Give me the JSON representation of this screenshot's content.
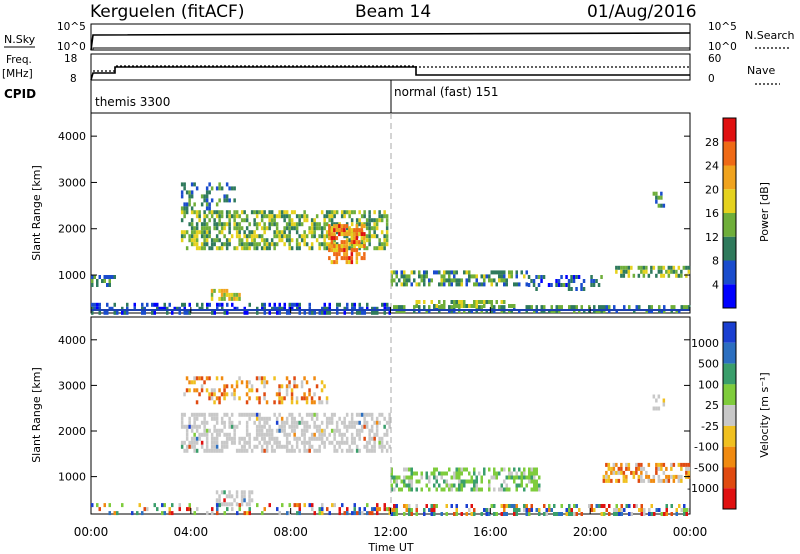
{
  "header": {
    "station": "Kerguelen (fitACF)",
    "beam": "Beam 14",
    "date": "01/Aug/2016"
  },
  "strip": {
    "nsky_label": "N.Sky",
    "nsearch_label": "N.Search",
    "nsky_ticks": [
      "10^5",
      "10^0"
    ],
    "nsearch_ticks": [
      "10^5",
      "10^0"
    ],
    "freq_label": "Freq.",
    "freq_unit": "[MHz]",
    "freq_ticks": [
      "18",
      "8"
    ],
    "nave_label": "Nave",
    "nave_ticks": [
      "60",
      "0"
    ],
    "cpid_label": "CPID",
    "cpid_segments": [
      {
        "label": "themis 3300",
        "start_hr": 0
      },
      {
        "label": "normal (fast) 151",
        "start_hr": 12
      }
    ]
  },
  "x_axis": {
    "title": "Time UT",
    "ticks": [
      "00:00",
      "04:00",
      "08:00",
      "12:00",
      "16:00",
      "20:00",
      "00:00"
    ],
    "range_hr": [
      0,
      24
    ]
  },
  "chart_data": [
    {
      "type": "heatmap",
      "name": "power",
      "ylabel": "Slant Range [km]",
      "yticks": [
        "1000",
        "2000",
        "3000",
        "4000"
      ],
      "ylim": [
        180,
        4500
      ],
      "colorbar_label": "Power [dB]",
      "colorbar_ticks": [
        "4",
        "8",
        "12",
        "16",
        "20",
        "24",
        "28"
      ],
      "colorbar_range": [
        0,
        30
      ],
      "colors": [
        "#0000ff",
        "#1a4ccd",
        "#2f7a5c",
        "#6fae3a",
        "#e5d21e",
        "#f0a31e",
        "#ef6a16",
        "#e01010"
      ],
      "regions": [
        {
          "t0": 0.0,
          "t1": 1.0,
          "r0": 800,
          "r1": 1000,
          "v": 8,
          "d": 0.7
        },
        {
          "t0": 0.0,
          "t1": 12.0,
          "r0": 200,
          "r1": 400,
          "v": 6,
          "d": 0.45
        },
        {
          "t0": 3.6,
          "t1": 11.9,
          "r0": 1600,
          "r1": 2400,
          "v": 13,
          "d": 0.6
        },
        {
          "t0": 3.6,
          "t1": 5.8,
          "r0": 2400,
          "r1": 3000,
          "v": 9,
          "d": 0.35
        },
        {
          "t0": 9.5,
          "t1": 11.0,
          "r0": 1300,
          "r1": 2100,
          "v": 22,
          "d": 0.75
        },
        {
          "t0": 4.8,
          "t1": 6.0,
          "r0": 500,
          "r1": 700,
          "v": 16,
          "d": 0.6
        },
        {
          "t0": 12.0,
          "t1": 24.0,
          "r0": 200,
          "r1": 350,
          "v": 10,
          "d": 0.55
        },
        {
          "t0": 12.8,
          "t1": 17.0,
          "r0": 360,
          "r1": 460,
          "v": 14,
          "d": 0.5
        },
        {
          "t0": 12.0,
          "t1": 17.5,
          "r0": 800,
          "r1": 1100,
          "v": 11,
          "d": 0.55
        },
        {
          "t0": 17.5,
          "t1": 20.5,
          "r0": 700,
          "r1": 1000,
          "v": 7,
          "d": 0.4
        },
        {
          "t0": 21.0,
          "t1": 24.0,
          "r0": 950,
          "r1": 1200,
          "v": 12,
          "d": 0.6
        },
        {
          "t0": 22.5,
          "t1": 23.0,
          "r0": 2500,
          "r1": 2800,
          "v": 10,
          "d": 0.5
        }
      ]
    },
    {
      "type": "heatmap",
      "name": "velocity",
      "ylabel": "Slant Range [km]",
      "yticks": [
        "1000",
        "2000",
        "3000",
        "4000"
      ],
      "ylim": [
        180,
        4500
      ],
      "colorbar_label": "Velocity [m s⁻¹]",
      "colorbar_ticks": [
        "1000",
        "500",
        "100",
        "25",
        "-25",
        "-100",
        "-500",
        "-1000"
      ],
      "colors": [
        "#1a3fd1",
        "#2c6fc0",
        "#3a9e6b",
        "#7fcc3c",
        "#c8c8c8",
        "#f0c020",
        "#f08a10",
        "#e04a10",
        "#e01010"
      ],
      "regions": [
        {
          "t0": 3.6,
          "t1": 12.0,
          "r0": 1600,
          "r1": 2400,
          "v": "gray",
          "d": 0.55
        },
        {
          "t0": 3.7,
          "t1": 9.5,
          "r0": 2600,
          "r1": 3200,
          "v": "orange",
          "d": 0.3
        },
        {
          "t0": 5.0,
          "t1": 6.5,
          "r0": 350,
          "r1": 700,
          "v": "gray",
          "d": 0.5
        },
        {
          "t0": 0.0,
          "t1": 12.0,
          "r0": 200,
          "r1": 420,
          "v": "mixed",
          "d": 0.3
        },
        {
          "t0": 12.0,
          "t1": 18.0,
          "r0": 700,
          "r1": 1200,
          "v": "green",
          "d": 0.5
        },
        {
          "t0": 12.0,
          "t1": 24.0,
          "r0": 200,
          "r1": 400,
          "v": "mixed",
          "d": 0.45
        },
        {
          "t0": 20.5,
          "t1": 24.0,
          "r0": 900,
          "r1": 1300,
          "v": "orange",
          "d": 0.55
        },
        {
          "t0": 22.5,
          "t1": 23.0,
          "r0": 2500,
          "r1": 2800,
          "v": "gray",
          "d": 0.5
        }
      ]
    }
  ]
}
